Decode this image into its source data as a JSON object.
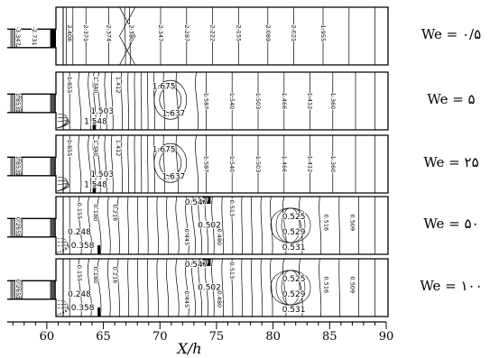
{
  "figure": {
    "panels": [
      {
        "we_label": "We = ۰/۵",
        "contour_labels": [
          "-3.347",
          "-2.731",
          "2.406",
          "2.371",
          "2.374",
          "2.380",
          "2.347",
          "2.287",
          "2.222",
          "2.155",
          "2.089",
          "2.021",
          "1.955"
        ]
      },
      {
        "we_label": "We = ۵",
        "contour_labels": [
          "1.853",
          "1.855",
          "1.548",
          "1.503",
          "1.340",
          "1.412",
          "1.675",
          "1.637",
          "1.587",
          "1.540",
          "1.503",
          "1.466",
          "1.412",
          "1.360"
        ]
      },
      {
        "we_label": "We = ۲۵",
        "contour_labels": [
          "1.853",
          "1.855",
          "1.548",
          "1.503",
          "1.340",
          "1.412",
          "1.675",
          "1.637",
          "1.587",
          "1.540",
          "1.503",
          "1.466",
          "1.412",
          "1.360"
        ]
      },
      {
        "we_label": "We = ۵۰",
        "contour_labels": [
          "0.265",
          "0.155",
          "0.248",
          "0.358",
          "0.180",
          "0.216",
          "0.547",
          "0.502",
          "0.445",
          "0.480",
          "0.513",
          "0.525",
          "0.529",
          "0.531",
          "0.516",
          "0.509"
        ]
      },
      {
        "we_label": "We = ۱۰۰",
        "contour_labels": [
          "0.265",
          "0.155",
          "0.248",
          "0.358",
          "0.180",
          "0.216",
          "0.547",
          "0.502",
          "0.445",
          "0.480",
          "0.513",
          "0.525",
          "0.529",
          "0.531",
          "0.516",
          "0.509"
        ]
      }
    ],
    "x_axis": {
      "label": "X/h",
      "ticks": [
        "60",
        "65",
        "70",
        "75",
        "80",
        "85",
        "90"
      ],
      "min": 56.5,
      "max": 90
    }
  }
}
